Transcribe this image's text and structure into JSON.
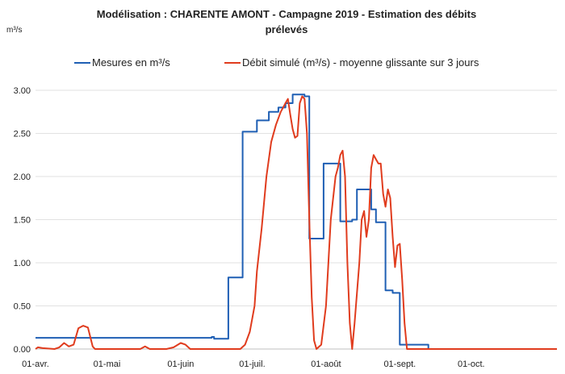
{
  "chart_data": {
    "type": "line",
    "title_line1": "Modélisation : CHARENTE AMONT - Campagne 2019 - Estimation des débits",
    "title_line2": "prélevés",
    "ylabel": "m³/s",
    "ylim": [
      0,
      3.0
    ],
    "yticks": [
      "0.00",
      "0.50",
      "1.00",
      "1.50",
      "2.00",
      "2.50",
      "3.00"
    ],
    "yticks_values": [
      0,
      0.5,
      1.0,
      1.5,
      2.0,
      2.5,
      3.0
    ],
    "xlim": [
      0,
      219
    ],
    "xticks": [
      {
        "day": 0,
        "label": "01-avr."
      },
      {
        "day": 30,
        "label": "01-mai"
      },
      {
        "day": 61,
        "label": "01-juin"
      },
      {
        "day": 91,
        "label": "01-juil."
      },
      {
        "day": 122,
        "label": "01-août"
      },
      {
        "day": 153,
        "label": "01-sept."
      },
      {
        "day": 183,
        "label": "01-oct."
      }
    ],
    "grid": true,
    "legend_position": "top",
    "series": [
      {
        "name": "Mesures en m³/s",
        "color": "#1f5fb4",
        "step": true,
        "points": [
          [
            0,
            0.13
          ],
          [
            74,
            0.13
          ],
          [
            74,
            0.14
          ],
          [
            75,
            0.14
          ],
          [
            75,
            0.12
          ],
          [
            81,
            0.12
          ],
          [
            81,
            0.83
          ],
          [
            87,
            0.83
          ],
          [
            87,
            2.52
          ],
          [
            93,
            2.52
          ],
          [
            93,
            2.65
          ],
          [
            98,
            2.65
          ],
          [
            98,
            2.75
          ],
          [
            102,
            2.75
          ],
          [
            102,
            2.8
          ],
          [
            105,
            2.8
          ],
          [
            105,
            2.85
          ],
          [
            108,
            2.85
          ],
          [
            108,
            2.95
          ],
          [
            113,
            2.95
          ],
          [
            113,
            2.93
          ],
          [
            115,
            2.93
          ],
          [
            115,
            1.28
          ],
          [
            121,
            1.28
          ],
          [
            121,
            2.15
          ],
          [
            128,
            2.15
          ],
          [
            128,
            1.48
          ],
          [
            133,
            1.48
          ],
          [
            133,
            1.5
          ],
          [
            135,
            1.5
          ],
          [
            135,
            1.85
          ],
          [
            141,
            1.85
          ],
          [
            141,
            1.62
          ],
          [
            143,
            1.62
          ],
          [
            143,
            1.47
          ],
          [
            147,
            1.47
          ],
          [
            147,
            0.68
          ],
          [
            150,
            0.68
          ],
          [
            150,
            0.65
          ],
          [
            153,
            0.65
          ],
          [
            153,
            0.05
          ],
          [
            165,
            0.05
          ],
          [
            165,
            0.0
          ],
          [
            219,
            0.0
          ]
        ]
      },
      {
        "name": "Débit simulé (m³/s) - moyenne glissante sur 3 jours",
        "color": "#e03c1e",
        "step": false,
        "points": [
          [
            0,
            0.0
          ],
          [
            1,
            0.02
          ],
          [
            3,
            0.01
          ],
          [
            8,
            0.0
          ],
          [
            10,
            0.02
          ],
          [
            12,
            0.07
          ],
          [
            14,
            0.03
          ],
          [
            16,
            0.05
          ],
          [
            18,
            0.24
          ],
          [
            20,
            0.27
          ],
          [
            22,
            0.25
          ],
          [
            24,
            0.03
          ],
          [
            25,
            0.0
          ],
          [
            44,
            0.0
          ],
          [
            46,
            0.03
          ],
          [
            48,
            0.0
          ],
          [
            55,
            0.0
          ],
          [
            58,
            0.02
          ],
          [
            61,
            0.07
          ],
          [
            63,
            0.05
          ],
          [
            65,
            0.0
          ],
          [
            86,
            0.0
          ],
          [
            88,
            0.05
          ],
          [
            90,
            0.2
          ],
          [
            92,
            0.5
          ],
          [
            93,
            0.9
          ],
          [
            95,
            1.4
          ],
          [
            97,
            2.0
          ],
          [
            99,
            2.4
          ],
          [
            101,
            2.6
          ],
          [
            103,
            2.75
          ],
          [
            105,
            2.85
          ],
          [
            106,
            2.9
          ],
          [
            107,
            2.72
          ],
          [
            108,
            2.55
          ],
          [
            109,
            2.45
          ],
          [
            110,
            2.47
          ],
          [
            111,
            2.85
          ],
          [
            112,
            2.93
          ],
          [
            113,
            2.9
          ],
          [
            114,
            2.5
          ],
          [
            115,
            1.5
          ],
          [
            116,
            0.6
          ],
          [
            117,
            0.1
          ],
          [
            118,
            0.0
          ],
          [
            120,
            0.05
          ],
          [
            122,
            0.5
          ],
          [
            124,
            1.5
          ],
          [
            126,
            2.0
          ],
          [
            127,
            2.1
          ],
          [
            128,
            2.25
          ],
          [
            129,
            2.3
          ],
          [
            130,
            2.0
          ],
          [
            131,
            1.0
          ],
          [
            132,
            0.3
          ],
          [
            133,
            0.0
          ],
          [
            134,
            0.3
          ],
          [
            136,
            1.0
          ],
          [
            137,
            1.5
          ],
          [
            138,
            1.6
          ],
          [
            139,
            1.3
          ],
          [
            140,
            1.5
          ],
          [
            141,
            2.1
          ],
          [
            142,
            2.25
          ],
          [
            143,
            2.2
          ],
          [
            144,
            2.15
          ],
          [
            145,
            2.15
          ],
          [
            146,
            1.8
          ],
          [
            147,
            1.65
          ],
          [
            148,
            1.85
          ],
          [
            149,
            1.75
          ],
          [
            150,
            1.3
          ],
          [
            151,
            0.95
          ],
          [
            152,
            1.2
          ],
          [
            153,
            1.22
          ],
          [
            154,
            0.8
          ],
          [
            155,
            0.3
          ],
          [
            156,
            0.0
          ],
          [
            219,
            0.0
          ]
        ]
      }
    ]
  }
}
